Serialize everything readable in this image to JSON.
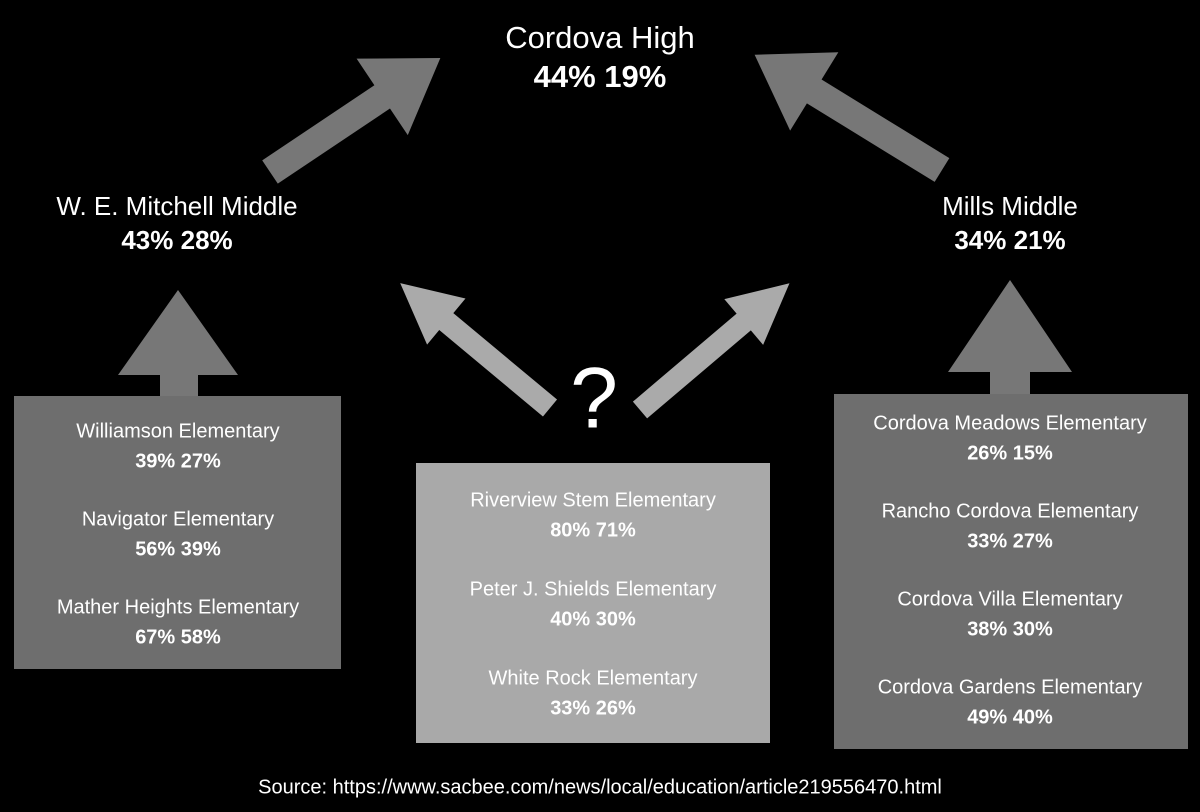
{
  "top": {
    "name": "Cordova High",
    "stats": "44% 19%"
  },
  "left_middle": {
    "name": "W. E. Mitchell Middle",
    "stats": "43% 28%"
  },
  "right_middle": {
    "name": "Mills Middle",
    "stats": "34% 21%"
  },
  "question": "?",
  "left_box": {
    "schools": [
      {
        "name": "Williamson Elementary",
        "stats": "39% 27%"
      },
      {
        "name": "Navigator Elementary",
        "stats": "56% 39%"
      },
      {
        "name": "Mather Heights Elementary",
        "stats": "67% 58%"
      }
    ]
  },
  "center_box": {
    "schools": [
      {
        "name": "Riverview Stem Elementary",
        "stats": "80% 71%"
      },
      {
        "name": "Peter J. Shields Elementary",
        "stats": "40% 30%"
      },
      {
        "name": "White Rock Elementary",
        "stats": "33% 26%"
      }
    ]
  },
  "right_box": {
    "schools": [
      {
        "name": "Cordova Meadows Elementary",
        "stats": "26% 15%"
      },
      {
        "name": "Rancho Cordova Elementary",
        "stats": "33% 27%"
      },
      {
        "name": "Cordova Villa Elementary",
        "stats": "38% 30%"
      },
      {
        "name": "Cordova Gardens Elementary",
        "stats": "49% 40%"
      }
    ]
  },
  "source": "Source: https://www.sacbee.com/news/local/education/article219556470.html"
}
